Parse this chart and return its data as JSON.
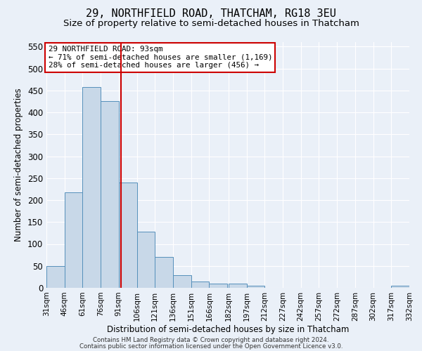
{
  "title1": "29, NORTHFIELD ROAD, THATCHAM, RG18 3EU",
  "title2": "Size of property relative to semi-detached houses in Thatcham",
  "xlabel": "Distribution of semi-detached houses by size in Thatcham",
  "ylabel": "Number of semi-detached properties",
  "bin_labels": [
    "31sqm",
    "46sqm",
    "61sqm",
    "76sqm",
    "91sqm",
    "106sqm",
    "121sqm",
    "136sqm",
    "151sqm",
    "166sqm",
    "182sqm",
    "197sqm",
    "212sqm",
    "227sqm",
    "242sqm",
    "257sqm",
    "272sqm",
    "287sqm",
    "302sqm",
    "317sqm",
    "332sqm"
  ],
  "bin_edges": [
    31,
    46,
    61,
    76,
    91,
    106,
    121,
    136,
    151,
    166,
    182,
    197,
    212,
    227,
    242,
    257,
    272,
    287,
    302,
    317,
    332
  ],
  "values": [
    50,
    218,
    457,
    425,
    240,
    128,
    70,
    29,
    15,
    10,
    9,
    5,
    0,
    0,
    0,
    0,
    0,
    0,
    0,
    5
  ],
  "bar_color": "#c8d8e8",
  "bar_edge_color": "#5590bb",
  "property_size": 93,
  "red_line_color": "#cc0000",
  "annotation_text_line1": "29 NORTHFIELD ROAD: 93sqm",
  "annotation_text_line2": "← 71% of semi-detached houses are smaller (1,169)",
  "annotation_text_line3": "28% of semi-detached houses are larger (456) →",
  "annotation_box_color": "#ffffff",
  "annotation_box_edge_color": "#cc0000",
  "ylim": [
    0,
    560
  ],
  "yticks": [
    0,
    50,
    100,
    150,
    200,
    250,
    300,
    350,
    400,
    450,
    500,
    550
  ],
  "bg_color": "#eaf0f8",
  "plot_bg_color": "#eaf0f8",
  "footer1": "Contains HM Land Registry data © Crown copyright and database right 2024.",
  "footer2": "Contains public sector information licensed under the Open Government Licence v3.0.",
  "title1_fontsize": 11,
  "title2_fontsize": 9.5,
  "grid_color": "#ffffff",
  "tick_label_fontsize": 7.5
}
